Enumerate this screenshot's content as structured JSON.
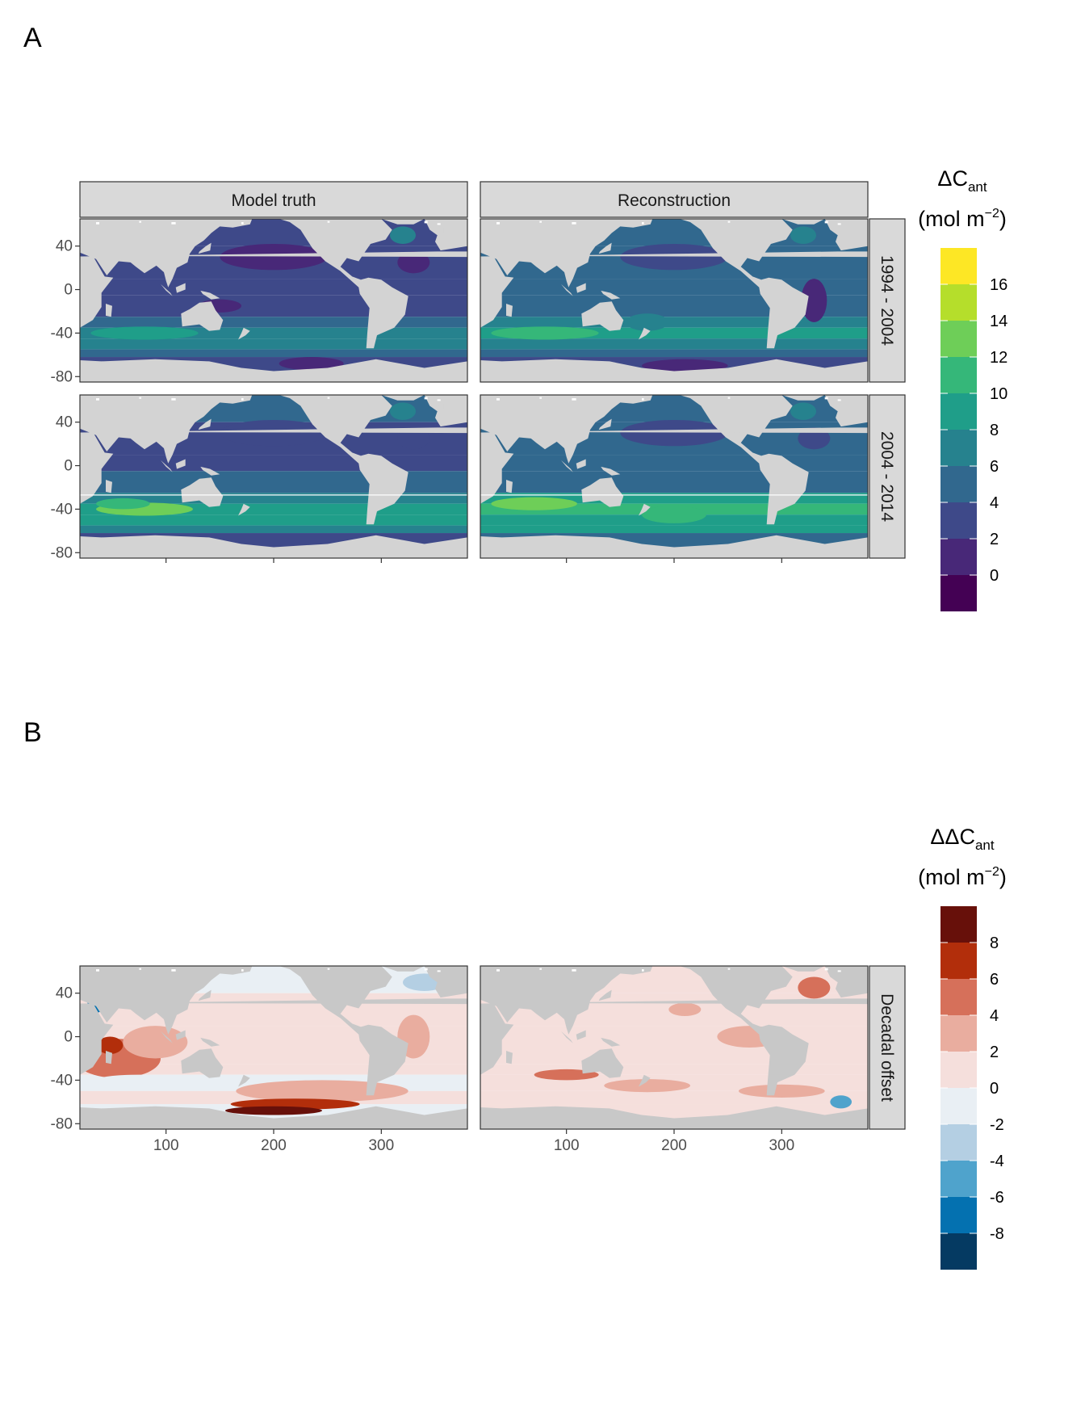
{
  "panels": {
    "a_label": "A",
    "b_label": "B"
  },
  "chart_data": [
    {
      "type": "heatmap",
      "panel": "A",
      "columns": [
        "Model truth",
        "Reconstruction"
      ],
      "rows": [
        "1994 - 2004",
        "2004 - 2014"
      ],
      "x_ticks": [
        100,
        200,
        300
      ],
      "x_tick_labels_shown": false,
      "xlim": [
        20,
        380
      ],
      "y_ticks": [
        40,
        0,
        -40,
        -80
      ],
      "y_tick_labels": [
        "40",
        "0",
        "-40",
        "-80"
      ],
      "ylim": [
        -85,
        65
      ],
      "legend": {
        "title_main": "ΔC",
        "title_sub": "ant",
        "unit_main": "(mol m",
        "unit_sup": "−2",
        "unit_close": ")",
        "placement": "right",
        "labels": [
          "16",
          "14",
          "12",
          "10",
          "8",
          "6",
          "4",
          "2",
          "0"
        ],
        "colors": [
          "#fde725",
          "#b5de2b",
          "#6ece58",
          "#35b779",
          "#1f9e89",
          "#26828e",
          "#31688e",
          "#3e4989",
          "#482878",
          "#440154"
        ]
      },
      "land_color": "#d3d3d3"
    },
    {
      "type": "heatmap",
      "panel": "B",
      "rows": [
        "Decadal offset"
      ],
      "x_ticks": [
        100,
        200,
        300
      ],
      "x_tick_labels": [
        "100",
        "200",
        "300"
      ],
      "xlim": [
        20,
        380
      ],
      "y_ticks": [
        40,
        0,
        -40,
        -80
      ],
      "y_tick_labels": [
        "40",
        "0",
        "-40",
        "-80"
      ],
      "ylim": [
        -85,
        65
      ],
      "legend": {
        "title_main": "ΔΔC",
        "title_sub": "ant",
        "unit_main": "(mol m",
        "unit_sup": "−2",
        "unit_close": ")",
        "placement": "right",
        "labels": [
          "8",
          "6",
          "4",
          "2",
          "0",
          "-2",
          "-4",
          "-6",
          "-8"
        ],
        "colors": [
          "#67100a",
          "#b22e0b",
          "#d6705a",
          "#e9ad9f",
          "#f5dfdc",
          "#e9eff4",
          "#b4cfe3",
          "#4fa3cc",
          "#0471b0",
          "#053a62"
        ]
      },
      "land_color": "#c8c8c8"
    }
  ]
}
